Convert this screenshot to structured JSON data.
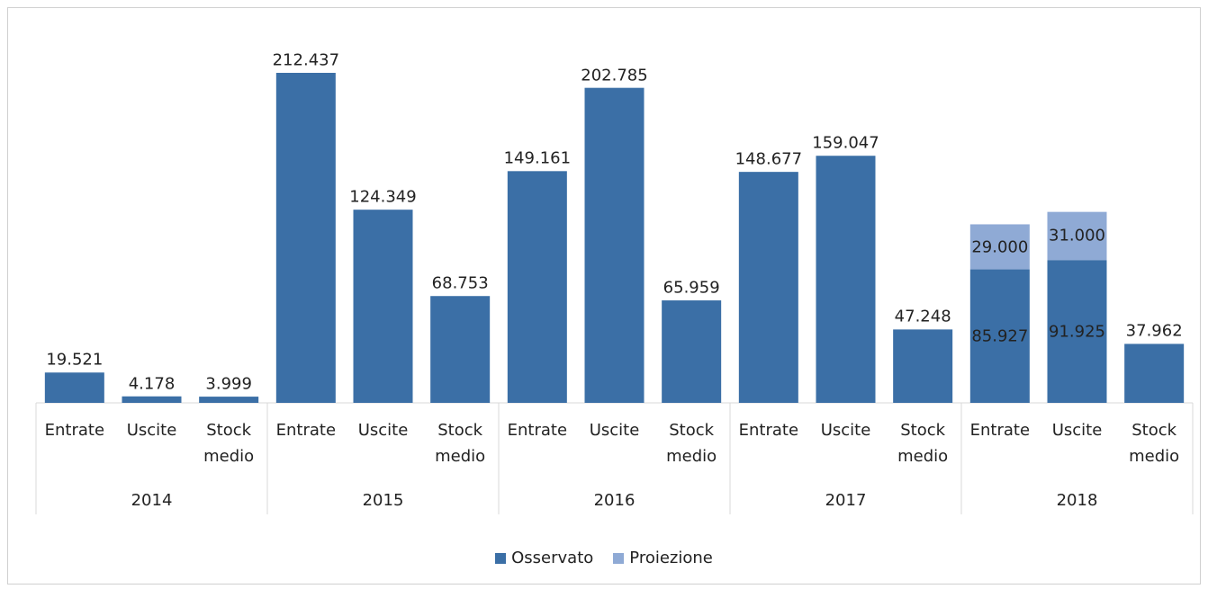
{
  "chart_data": {
    "type": "stacked_bar",
    "groups": [
      "2014",
      "2015",
      "2016",
      "2017",
      "2018"
    ],
    "categories": [
      "Entrate",
      "Uscite",
      "Stock medio",
      "Entrate",
      "Uscite",
      "Stock medio",
      "Entrate",
      "Uscite",
      "Stock medio",
      "Entrate",
      "Uscite",
      "Stock medio",
      "Entrate",
      "Uscite",
      "Stock medio"
    ],
    "series": [
      {
        "name": "Osservato",
        "color": "#3b6fa6",
        "values": [
          19521,
          4178,
          3999,
          212437,
          124349,
          68753,
          149161,
          202785,
          65959,
          148677,
          159047,
          47248,
          85927,
          91925,
          37962
        ],
        "value_labels": [
          "19.521",
          "4.178",
          "3.999",
          "212.437",
          "124.349",
          "68.753",
          "149.161",
          "202.785",
          "65.959",
          "148.677",
          "159.047",
          "47.248",
          "85.927",
          "91.925",
          "37.962"
        ]
      },
      {
        "name": "Proiezione",
        "color": "#8faad5",
        "values": [
          null,
          null,
          null,
          null,
          null,
          null,
          null,
          null,
          null,
          null,
          null,
          null,
          29000,
          31000,
          null
        ],
        "value_labels": [
          null,
          null,
          null,
          null,
          null,
          null,
          null,
          null,
          null,
          null,
          null,
          null,
          "29.000",
          "31.000",
          null
        ]
      }
    ],
    "legend": "bottom"
  }
}
